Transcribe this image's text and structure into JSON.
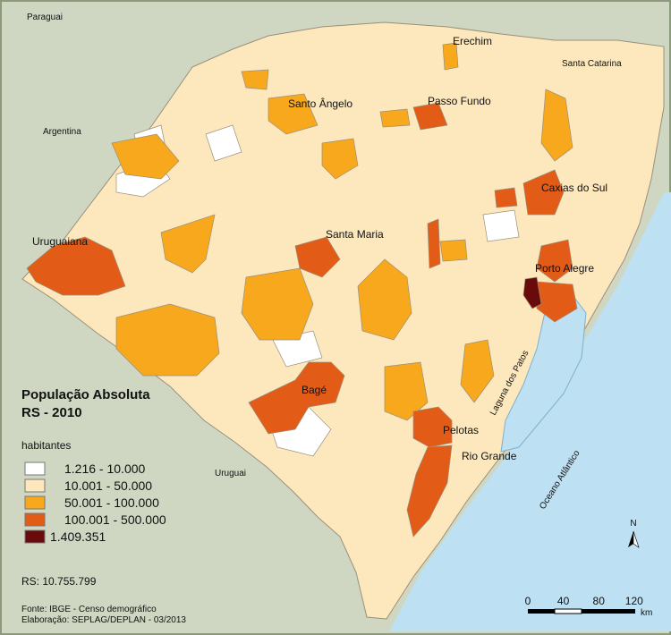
{
  "map": {
    "title": "População Absoluta",
    "subtitle": "RS - 2010",
    "legend": {
      "title": "habitantes",
      "items": [
        {
          "label": "1.216 - 10.000",
          "color": "#ffffff"
        },
        {
          "label": "10.001 - 50.000",
          "color": "#fde8bd"
        },
        {
          "label": "50.001 - 100.000",
          "color": "#f7a81c"
        },
        {
          "label": "100.001 - 500.000",
          "color": "#e25b17"
        },
        {
          "label": "1.409.351",
          "color": "#6a0b0b"
        }
      ]
    },
    "total": "RS: 10.755.799",
    "source": [
      "Fonte: IBGE - Censo demográfico",
      "Elaboração: SEPLAG/DEPLAN - 03/2013"
    ],
    "neighbors": [
      "Paraguai",
      "Argentina",
      "Santa Catarina",
      "Uruguai"
    ],
    "water": [
      "Laguna dos Patos",
      "Oceano Atlântico"
    ],
    "cities": [
      "Erechim",
      "Passo Fundo",
      "Santo Ângelo",
      "Caxias do Sul",
      "Uruguaiana",
      "Santa Maria",
      "Porto Alegre",
      "Bagé",
      "Pelotas",
      "Rio Grande"
    ],
    "scale": {
      "ticks": [
        "0",
        "40",
        "80",
        "120"
      ],
      "unit": "km"
    },
    "north": "N"
  }
}
